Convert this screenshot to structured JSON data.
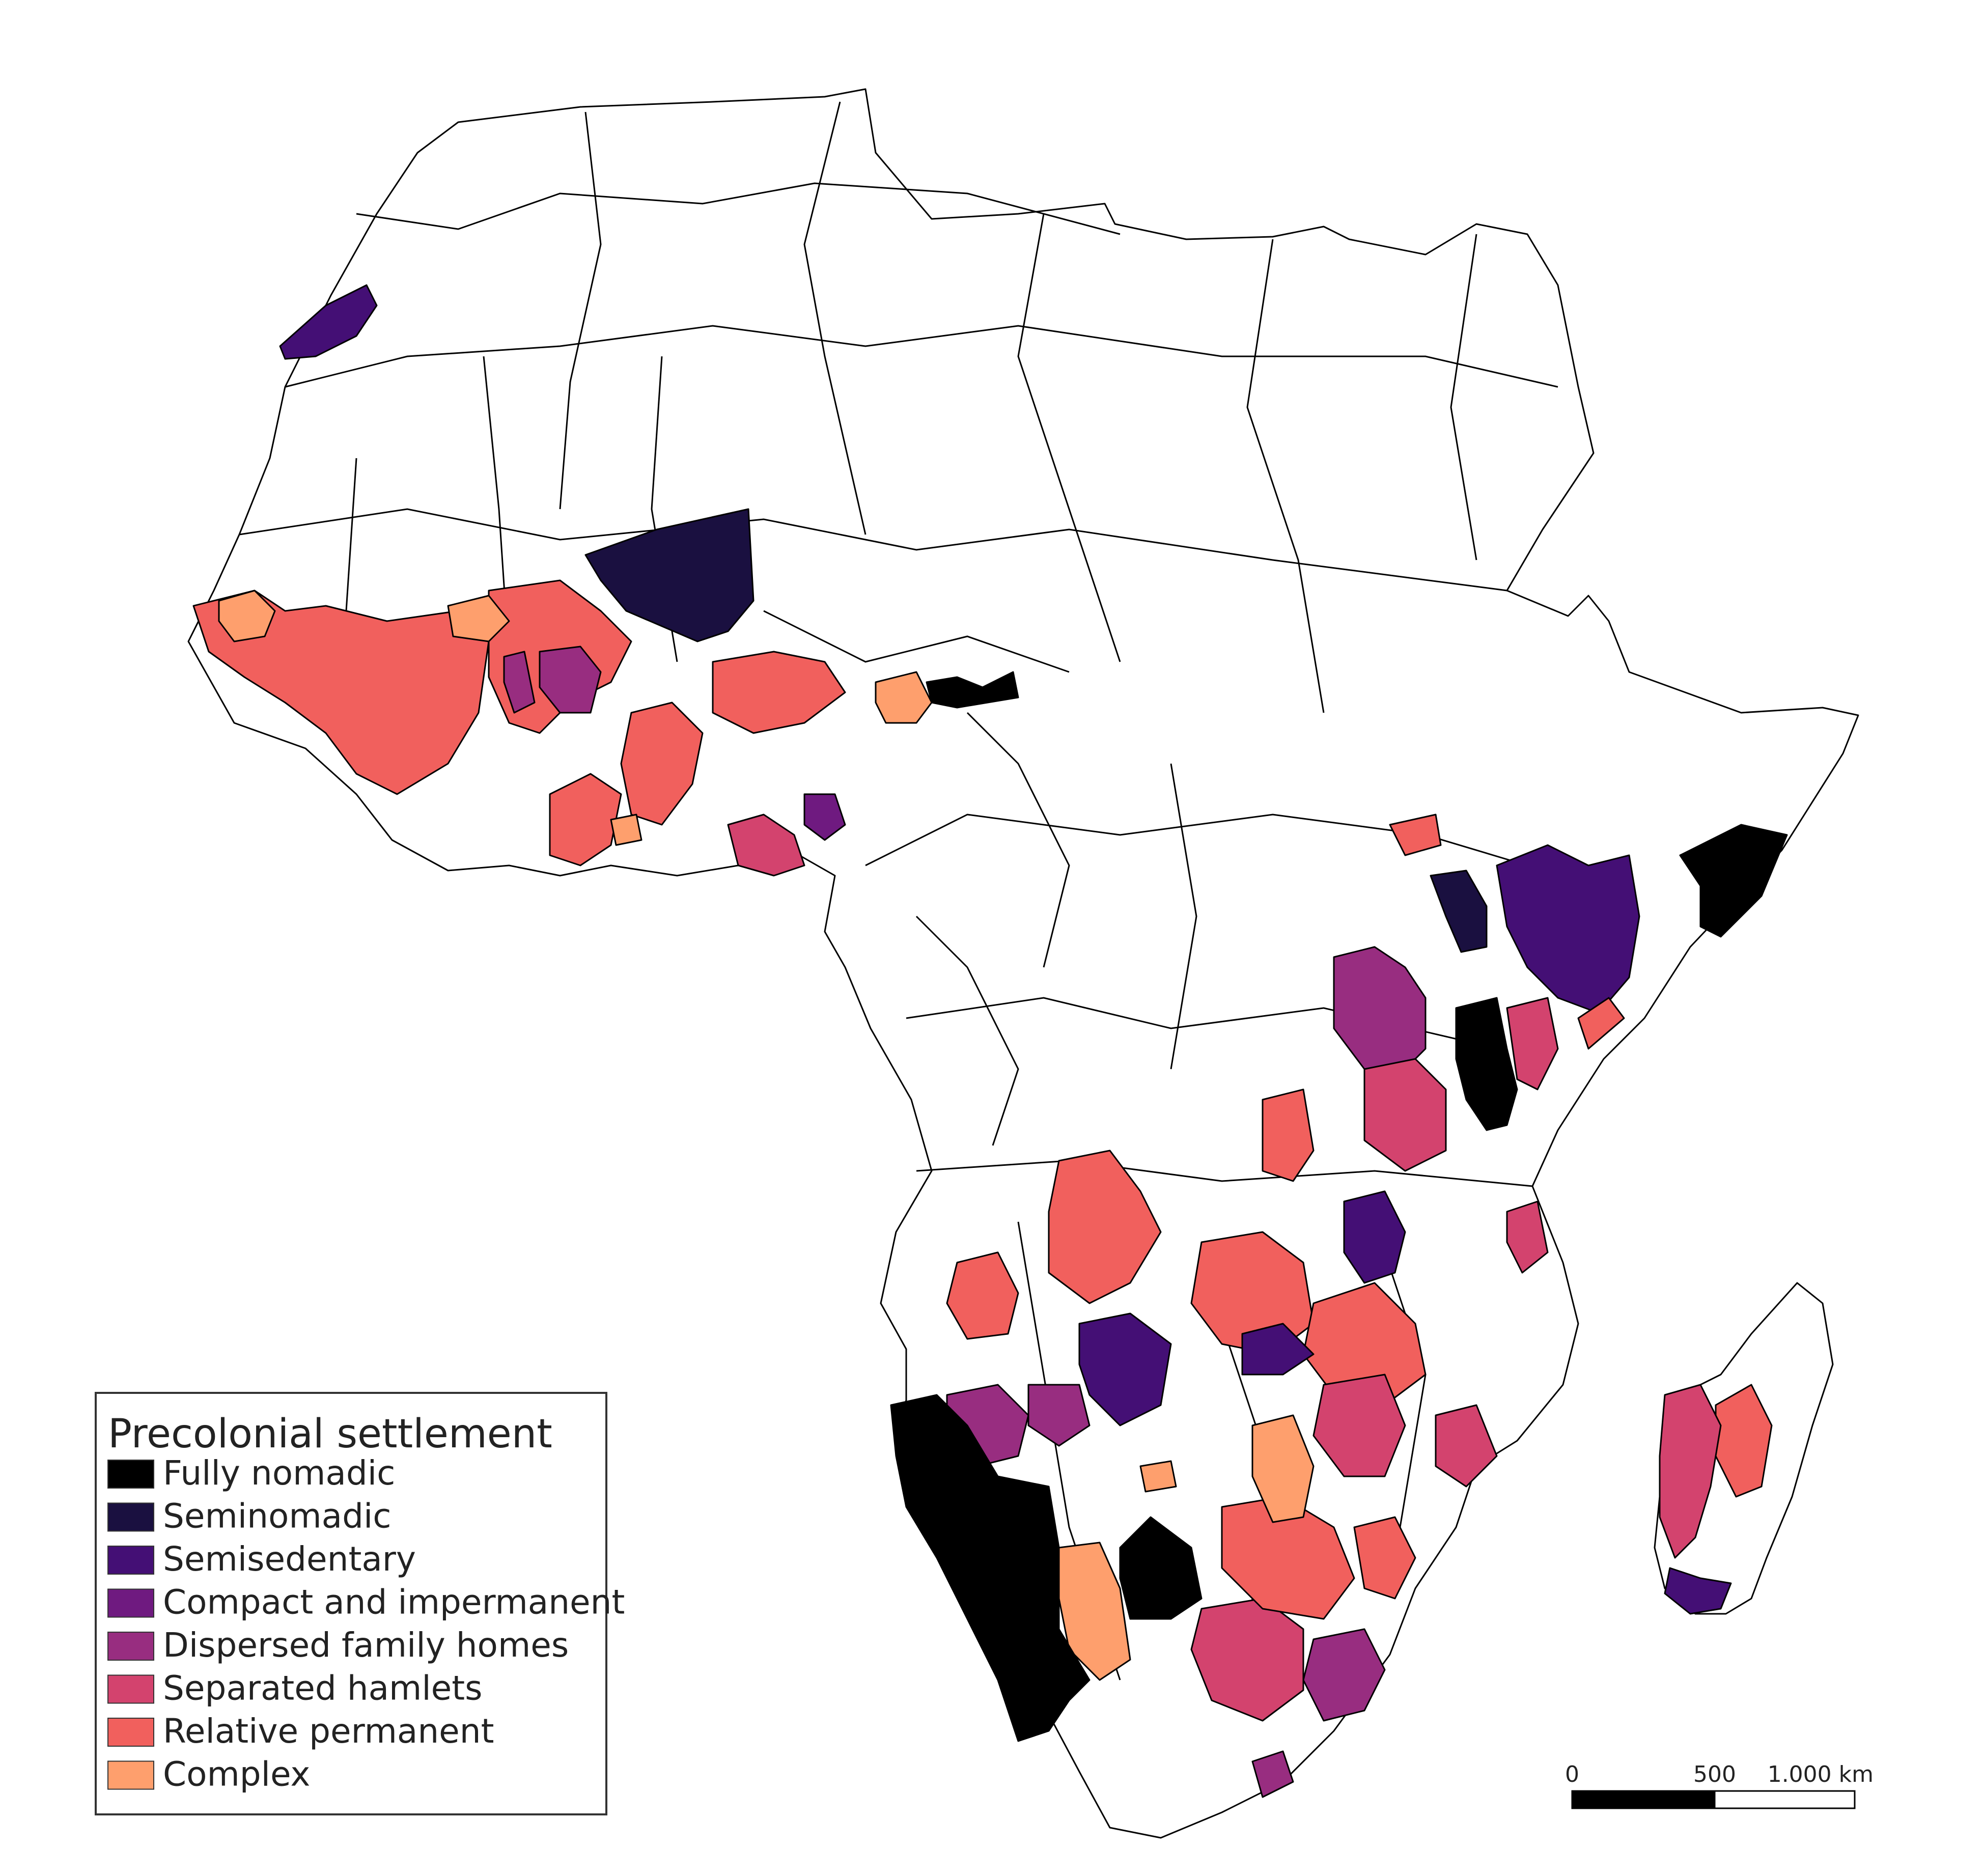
{
  "map": {
    "legend": {
      "title": "Precolonial settlement",
      "items": [
        {
          "label": "Fully nomadic",
          "color": "#000000"
        },
        {
          "label": "Seminomadic",
          "color": "#1a1040"
        },
        {
          "label": "Semisedentary",
          "color": "#440f75"
        },
        {
          "label": "Compact and impermanent",
          "color": "#6f1a80"
        },
        {
          "label": "Dispersed family homes",
          "color": "#982d80"
        },
        {
          "label": "Separated hamlets",
          "color": "#d3436e"
        },
        {
          "label": "Relative permanent",
          "color": "#f1605d"
        },
        {
          "label": "Complex",
          "color": "#fe9f6d"
        }
      ]
    },
    "scale_bar": {
      "labels": [
        "0",
        "500",
        "1.000 km"
      ]
    },
    "colors": {
      "no_data": "#ffffff",
      "border": "#000000"
    }
  }
}
